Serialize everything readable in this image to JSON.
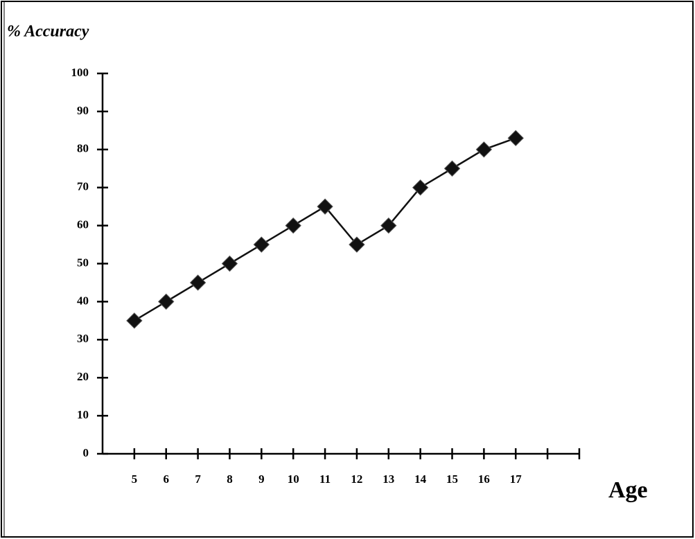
{
  "chart_data": {
    "type": "line",
    "y_label": "% Accuracy",
    "x_label": "Age",
    "x": [
      5,
      6,
      7,
      8,
      9,
      10,
      11,
      12,
      13,
      14,
      15,
      16,
      17
    ],
    "series": [
      {
        "color": "#111111",
        "values": [
          35,
          40,
          45,
          50,
          55,
          60,
          65,
          55,
          60,
          70,
          75,
          80,
          83
        ]
      }
    ],
    "xlim": [
      4,
      19
    ],
    "xticks": [
      5,
      6,
      7,
      8,
      9,
      10,
      11,
      12,
      13,
      14,
      15,
      16,
      17
    ],
    "ylim": [
      0,
      100
    ],
    "yticks": [
      0,
      10,
      20,
      30,
      40,
      50,
      60,
      70,
      80,
      90,
      100
    ],
    "grid": false
  }
}
